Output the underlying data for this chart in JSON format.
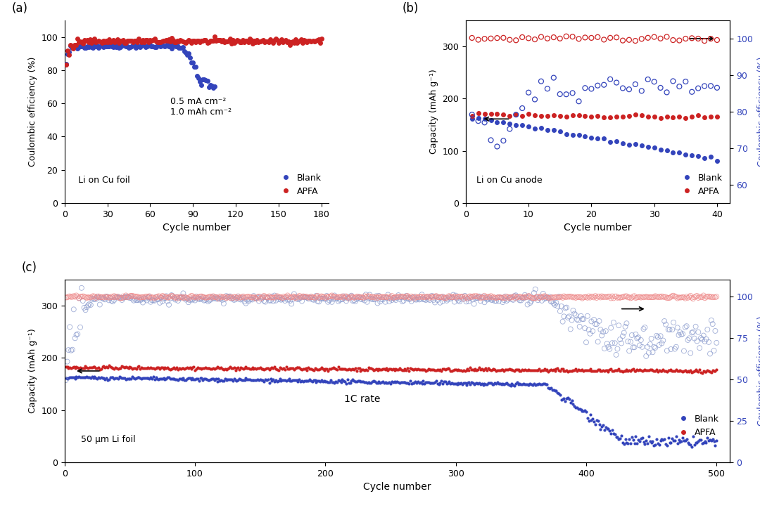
{
  "panel_a": {
    "title_label": "(a)",
    "ylabel": "Coulombic efficiency (%)",
    "xlabel": "Cycle number",
    "ylim": [
      0,
      110
    ],
    "yticks": [
      0,
      20,
      40,
      60,
      80,
      100
    ],
    "xlim": [
      0,
      185
    ],
    "xticks": [
      0,
      30,
      60,
      90,
      120,
      150,
      180
    ],
    "annotation": "0.5 mA cm⁻²\n1.0 mAh cm⁻²",
    "text2": "Li on Cu foil",
    "blank_color": "#3344bb",
    "apfa_color": "#cc2222"
  },
  "panel_b": {
    "title_label": "(b)",
    "ylabel": "Capacity (mAh g⁻¹)",
    "ylabel2": "Coulombic efficiency (%)",
    "xlabel": "Cycle number",
    "ylim": [
      0,
      350
    ],
    "yticks": [
      0,
      100,
      200,
      300
    ],
    "ylim2": [
      55,
      105
    ],
    "yticks2": [
      60,
      70,
      80,
      90,
      100
    ],
    "xlim": [
      0,
      42
    ],
    "xticks": [
      0,
      10,
      20,
      30,
      40
    ],
    "text1": "Li on Cu anode",
    "blank_color": "#3344bb",
    "apfa_color": "#cc2222"
  },
  "panel_c": {
    "title_label": "(c)",
    "ylabel": "Capacity (mAh g⁻¹)",
    "ylabel2": "Coulombic efficiency (%)",
    "xlabel": "Cycle number",
    "ylim": [
      0,
      350
    ],
    "yticks": [
      0,
      100,
      200,
      300
    ],
    "ylim2": [
      0,
      110
    ],
    "yticks2": [
      0,
      25,
      50,
      75,
      100
    ],
    "xlim": [
      0,
      510
    ],
    "xticks": [
      0,
      100,
      200,
      300,
      400,
      500
    ],
    "text1": "50 μm Li foil",
    "text2": "1C rate",
    "blank_color": "#3344bb",
    "apfa_color": "#cc2222"
  },
  "blank_color": "#3344bb",
  "apfa_color": "#cc2222",
  "blank_open_color": "#8899cc",
  "apfa_open_color": "#ee8888"
}
